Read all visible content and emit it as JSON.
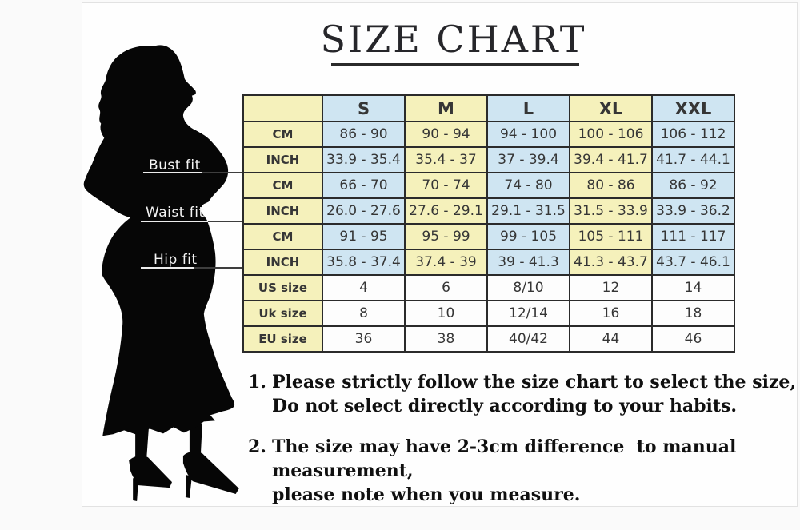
{
  "title": {
    "text": "SIZE CHART"
  },
  "figure": {
    "silhouette": "woman-in-mermaid-dress-silhouette",
    "labels": [
      {
        "text": "Bust fit"
      },
      {
        "text": "Waist fit"
      },
      {
        "text": "Hip fit"
      }
    ]
  },
  "chart_data": {
    "type": "table",
    "title": "SIZE CHART",
    "columns": [
      "",
      "S",
      "M",
      "L",
      "XL",
      "XXL"
    ],
    "rows": [
      {
        "label": "CM",
        "group": "Bust fit",
        "values": [
          "86 - 90",
          "90 - 94",
          "94 - 100",
          "100 - 106",
          "106 - 112"
        ]
      },
      {
        "label": "INCH",
        "group": "Bust fit",
        "values": [
          "33.9 - 35.4",
          "35.4 - 37",
          "37 - 39.4",
          "39.4 - 41.7",
          "41.7 - 44.1"
        ]
      },
      {
        "label": "CM",
        "group": "Waist fit",
        "values": [
          "66 - 70",
          "70 - 74",
          "74 - 80",
          "80 - 86",
          "86 - 92"
        ]
      },
      {
        "label": "INCH",
        "group": "Waist fit",
        "values": [
          "26.0 - 27.6",
          "27.6 - 29.1",
          "29.1 - 31.5",
          "31.5 - 33.9",
          "33.9 - 36.2"
        ]
      },
      {
        "label": "CM",
        "group": "Hip fit",
        "values": [
          "91 - 95",
          "95 - 99",
          "99 - 105",
          "105 - 111",
          "111 - 117"
        ]
      },
      {
        "label": "INCH",
        "group": "Hip fit",
        "values": [
          "35.8 - 37.4",
          "37.4 - 39",
          "39 - 41.3",
          "41.3 - 43.7",
          "43.7 - 46.1"
        ]
      },
      {
        "label": "US size",
        "group": "",
        "values": [
          "4",
          "6",
          "8/10",
          "12",
          "14"
        ]
      },
      {
        "label": "Uk size",
        "group": "",
        "values": [
          "8",
          "10",
          "12/14",
          "16",
          "18"
        ]
      },
      {
        "label": "EU size",
        "group": "",
        "values": [
          "36",
          "38",
          "40/42",
          "44",
          "46"
        ]
      }
    ]
  },
  "notes": [
    {
      "number": "1.",
      "line1": "Please strictly follow the size chart to select the size,",
      "line2": "Do not select directly according to your habits."
    },
    {
      "number": "2.",
      "line1": "The size may have 2-3cm difference  to manual measurement,",
      "line2": "please note when you measure."
    }
  ],
  "colors": {
    "cell_yellow": "#f5f1bb",
    "cell_blue": "#cfe5f2",
    "table_border": "#2b2b2b",
    "silhouette_black": "#060606"
  }
}
